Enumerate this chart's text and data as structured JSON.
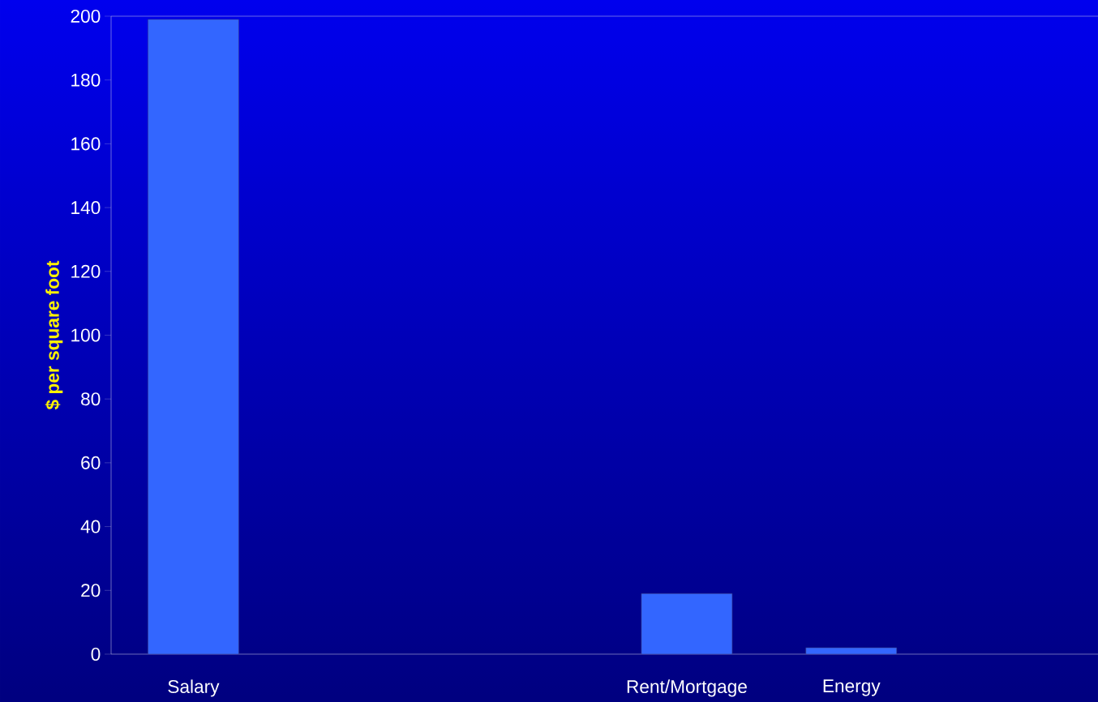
{
  "chart_data": {
    "type": "bar",
    "ylabel": "$ per square foot",
    "categories": [
      "Salary",
      null,
      null,
      "Rent/Mortgage",
      "Energy",
      null
    ],
    "values": [
      199,
      null,
      null,
      19,
      2,
      null
    ],
    "color": "#3366ff",
    "ylim": [
      0,
      200
    ],
    "yticks": [
      0,
      20,
      40,
      60,
      80,
      100,
      120,
      140,
      160,
      180,
      200
    ],
    "grid": false
  }
}
